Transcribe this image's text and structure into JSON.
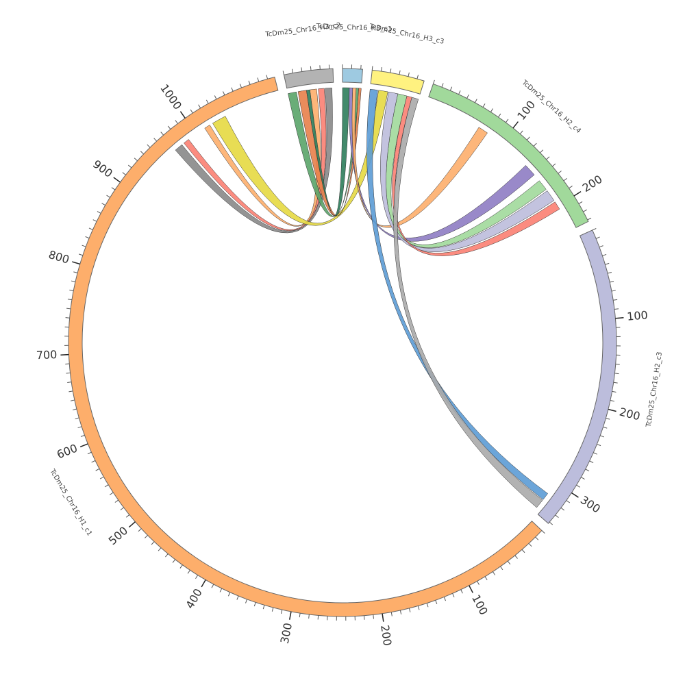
{
  "chart_data": {
    "type": "circos",
    "minor_tick_step": 10,
    "contigs": [
      {
        "name": "TcDm25_Chr16_H3_c1",
        "length": 22,
        "color": "#9ecae1",
        "major_ticks": []
      },
      {
        "name": "TcDm25_Chr16_H3_c3",
        "length": 58,
        "color": "#fff280",
        "major_ticks": []
      },
      {
        "name": "TcDm25_Chr16_H2_c4",
        "length": 232,
        "color": "#a1d99b",
        "major_ticks": [
          100,
          200
        ]
      },
      {
        "name": "TcDm25_Chr16_H2_c3",
        "length": 342,
        "color": "#bcbddc",
        "major_ticks": [
          100,
          200,
          300
        ]
      },
      {
        "name": "TcDm25_Chr16_H1_c1",
        "length": 1108,
        "color": "#fdae6b",
        "major_ticks": [
          100,
          200,
          300,
          400,
          500,
          600,
          700,
          800,
          900,
          1000
        ]
      },
      {
        "name": "TcDm25_Chr16_H3_c2",
        "length": 54,
        "color": "#b3b3b3",
        "major_ticks": []
      }
    ],
    "links": [
      {
        "color": "#888888",
        "source": {
          "contig": "TcDm25_Chr16_H1_c1",
          "start": 969,
          "end": 979
        },
        "target": {
          "contig": "TcDm25_Chr16_H3_c2",
          "start": 44,
          "end": 52
        }
      },
      {
        "color": "#fb8072",
        "source": {
          "contig": "TcDm25_Chr16_H1_c1",
          "start": 982,
          "end": 989
        },
        "target": {
          "contig": "TcDm25_Chr16_H3_c2",
          "start": 36,
          "end": 43
        }
      },
      {
        "color": "#fdae6b",
        "source": {
          "contig": "TcDm25_Chr16_H1_c1",
          "start": 1012,
          "end": 1019
        },
        "target": {
          "contig": "TcDm25_Chr16_H3_c2",
          "start": 26,
          "end": 34
        }
      },
      {
        "color": "#e6d941",
        "source": {
          "contig": "TcDm25_Chr16_H1_c1",
          "start": 1023,
          "end": 1040
        },
        "target": {
          "contig": "TcDm25_Chr16_H3_c3",
          "start": 10,
          "end": 21
        }
      },
      {
        "color": "#5aa469",
        "source": {
          "contig": "TcDm25_Chr16_H3_c2",
          "start": 0,
          "end": 10
        },
        "target": {
          "contig": "TcDm25_Chr16_H3_c1",
          "start": 16,
          "end": 19
        }
      },
      {
        "color": "#e8804a",
        "source": {
          "contig": "TcDm25_Chr16_H3_c2",
          "start": 12,
          "end": 22
        },
        "target": {
          "contig": "TcDm25_Chr16_H3_c1",
          "start": 19,
          "end": 22
        }
      },
      {
        "color": "#2e7d5b",
        "source": {
          "contig": "TcDm25_Chr16_H3_c1",
          "start": 0,
          "end": 8
        },
        "target": {
          "contig": "TcDm25_Chr16_H3_c2",
          "start": 22,
          "end": 26
        }
      },
      {
        "color": "#8e7cc3",
        "source": {
          "contig": "TcDm25_Chr16_H3_c1",
          "start": 8,
          "end": 12
        },
        "target": {
          "contig": "TcDm25_Chr16_H2_c4",
          "start": 139,
          "end": 154
        }
      },
      {
        "color": "#fdae6b",
        "source": {
          "contig": "TcDm25_Chr16_H3_c1",
          "start": 12,
          "end": 16
        },
        "target": {
          "contig": "TcDm25_Chr16_H2_c4",
          "start": 68,
          "end": 80
        }
      },
      {
        "color": "#a1d99b",
        "source": {
          "contig": "TcDm25_Chr16_H3_c3",
          "start": 33,
          "end": 44
        },
        "target": {
          "contig": "TcDm25_Chr16_H2_c4",
          "start": 163,
          "end": 176
        }
      },
      {
        "color": "#bcbddc",
        "source": {
          "contig": "TcDm25_Chr16_H3_c3",
          "start": 22,
          "end": 33
        },
        "target": {
          "contig": "TcDm25_Chr16_H2_c4",
          "start": 178,
          "end": 192
        }
      },
      {
        "color": "#fb8072",
        "source": {
          "contig": "TcDm25_Chr16_H3_c3",
          "start": 44,
          "end": 50
        },
        "target": {
          "contig": "TcDm25_Chr16_H2_c4",
          "start": 194,
          "end": 204
        }
      },
      {
        "color": "#5b9bd5",
        "source": {
          "contig": "TcDm25_Chr16_H3_c3",
          "start": 0,
          "end": 9
        },
        "target": {
          "contig": "TcDm25_Chr16_H2_c3",
          "start": 316,
          "end": 325
        }
      },
      {
        "color": "#aaaaaa",
        "source": {
          "contig": "TcDm25_Chr16_H3_c3",
          "start": 50,
          "end": 58
        },
        "target": {
          "contig": "TcDm25_Chr16_H2_c3",
          "start": 326,
          "end": 337
        }
      }
    ]
  }
}
